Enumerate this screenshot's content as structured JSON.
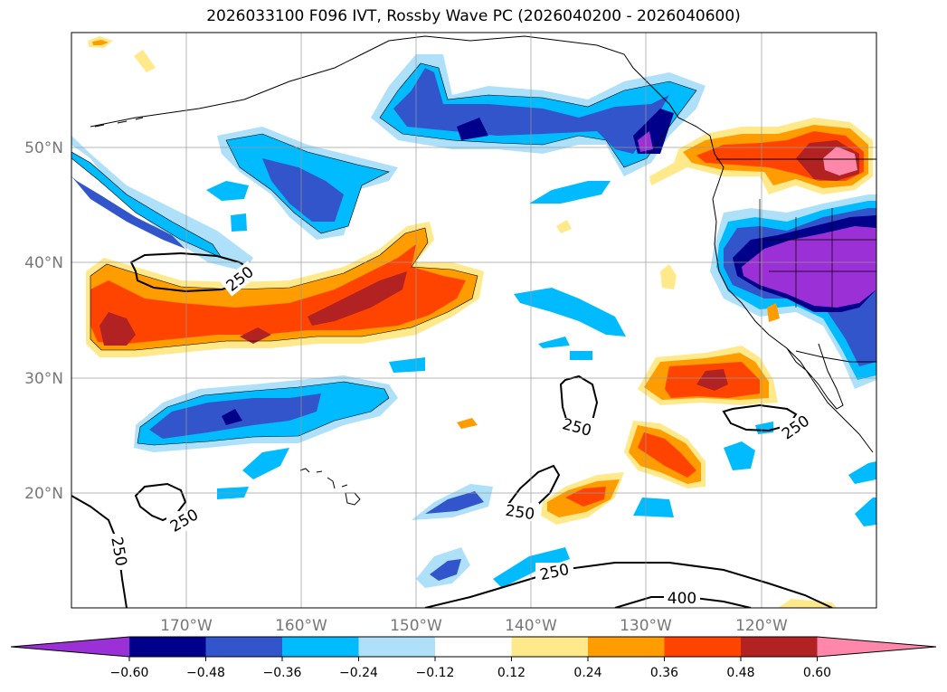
{
  "title": "2026033100 F096 IVT, Rossby Wave PC (2026040200 - 2026040600)",
  "map": {
    "lat_ticks": [
      {
        "deg": 50,
        "label": "50°N"
      },
      {
        "deg": 40,
        "label": "40°N"
      },
      {
        "deg": 30,
        "label": "30°N"
      },
      {
        "deg": 20,
        "label": "20°N"
      }
    ],
    "lon_ticks": [
      {
        "deg": -170,
        "label": "170°W"
      },
      {
        "deg": -160,
        "label": "160°W"
      },
      {
        "deg": -150,
        "label": "150°W"
      },
      {
        "deg": -140,
        "label": "140°W"
      },
      {
        "deg": -130,
        "label": "130°W"
      },
      {
        "deg": -120,
        "label": "120°W"
      }
    ],
    "extent": {
      "lon": [
        -180,
        -110
      ],
      "lat": [
        10,
        60
      ]
    },
    "gridlines": true,
    "ivt_contour_labels": [
      "250",
      "250",
      "250",
      "250",
      "250",
      "250",
      "400"
    ]
  },
  "colorbar": {
    "ticks": [
      "−0.60",
      "−0.48",
      "−0.36",
      "−0.24",
      "−0.12",
      "0.12",
      "0.24",
      "0.36",
      "0.48",
      "0.60"
    ],
    "colors": [
      "#9b30d6",
      "#00008b",
      "#3355cc",
      "#00bbff",
      "#aee0fa",
      "#ffffff",
      "#ffe98a",
      "#ff9c00",
      "#ff4400",
      "#b22222",
      "#ff88aa"
    ],
    "extend": "both"
  }
}
